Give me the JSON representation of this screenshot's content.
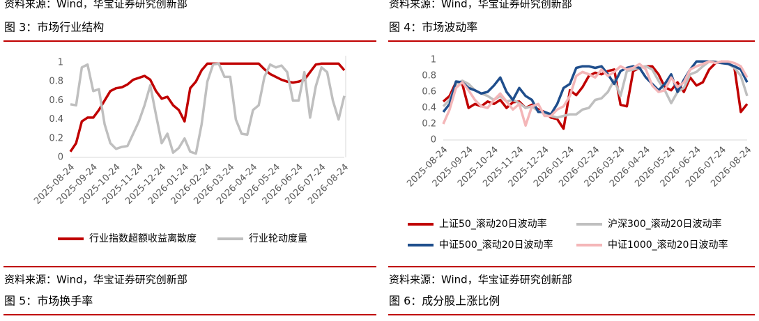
{
  "left": {
    "top_source": "资料来源：Wind，华宝证券研究创新部",
    "caption": "图 3：市场行业结构",
    "source": "资料来源：Wind，华宝证券研究创新部",
    "next_caption": "图 5：市场换手率"
  },
  "right": {
    "top_source": "资料来源：Wind，华宝证券研究创新部",
    "caption": "图 4：市场波动率",
    "source": "资料来源：Wind，华宝证券研究创新部",
    "next_caption": "图 6：成分股上涨比例"
  },
  "chart_data": [
    {
      "type": "line",
      "categories": [
        "2025-08-24",
        null,
        null,
        null,
        "2025-09-24",
        null,
        null,
        null,
        "2025-10-24",
        null,
        null,
        null,
        "2025-11-24",
        null,
        null,
        null,
        "2025-12-24",
        null,
        null,
        null,
        "2026-01-24",
        null,
        null,
        null,
        "2026-02-24",
        null,
        null,
        null,
        "2026-03-24",
        null,
        null,
        null,
        "2026-04-24",
        null,
        null,
        null,
        "2026-05-24",
        null,
        null,
        null,
        "2026-06-24",
        null,
        null,
        null,
        "2026-07-24",
        null,
        null,
        null,
        "2026-08-24"
      ],
      "ylim": [
        0,
        1
      ],
      "yticks": [
        0,
        0.2,
        0.4,
        0.6,
        0.8,
        1
      ],
      "grid": false,
      "series": [
        {
          "name": "行业指数超额收益离散度",
          "color": "#c00000",
          "values": [
            0.06,
            0.15,
            0.38,
            0.42,
            0.42,
            0.5,
            0.6,
            0.7,
            0.73,
            0.74,
            0.77,
            0.82,
            0.84,
            0.86,
            0.82,
            0.7,
            0.62,
            0.64,
            0.55,
            0.5,
            0.38,
            0.73,
            0.8,
            0.92,
            0.99,
            0.99,
            0.99,
            0.99,
            0.99,
            0.99,
            0.99,
            0.99,
            0.99,
            0.99,
            0.93,
            0.88,
            0.85,
            0.82,
            0.8,
            0.79,
            0.8,
            0.82,
            0.9,
            0.98,
            0.99,
            0.99,
            0.99,
            0.99,
            0.92
          ]
        },
        {
          "name": "行业轮动度量",
          "color": "#bfbfbf",
          "values": [
            0.56,
            0.55,
            0.95,
            0.98,
            0.7,
            0.72,
            0.35,
            0.15,
            0.09,
            0.11,
            0.12,
            0.25,
            0.38,
            0.55,
            0.76,
            0.45,
            0.15,
            0.25,
            0.05,
            0.1,
            0.2,
            0.06,
            0.04,
            0.35,
            0.8,
            0.98,
            0.99,
            0.85,
            0.85,
            0.4,
            0.25,
            0.24,
            0.5,
            0.55,
            0.85,
            0.98,
            0.95,
            0.97,
            0.9,
            0.6,
            0.6,
            0.9,
            0.42,
            0.75,
            0.95,
            0.9,
            0.6,
            0.4,
            0.65
          ]
        }
      ]
    },
    {
      "type": "line",
      "categories": [
        "2025-08-24",
        null,
        null,
        null,
        "2025-09-24",
        null,
        null,
        null,
        "2025-10-24",
        null,
        null,
        null,
        "2025-11-24",
        null,
        null,
        null,
        "2025-12-24",
        null,
        null,
        null,
        "2026-01-24",
        null,
        null,
        null,
        "2026-02-24",
        null,
        null,
        null,
        "2026-03-24",
        null,
        null,
        null,
        "2026-04-24",
        null,
        null,
        null,
        "2026-05-24",
        null,
        null,
        null,
        "2026-06-24",
        null,
        null,
        null,
        "2026-07-24",
        null,
        null,
        null,
        "2026-08-24"
      ],
      "ylim": [
        0,
        1
      ],
      "yticks": [
        0,
        0.2,
        0.4,
        0.6,
        0.8,
        1
      ],
      "grid": false,
      "series": [
        {
          "name": "上证50_滚动20日波动率",
          "color": "#c00000",
          "values": [
            0.48,
            0.55,
            0.72,
            0.7,
            0.4,
            0.45,
            0.42,
            0.48,
            0.45,
            0.5,
            0.4,
            0.47,
            0.48,
            0.4,
            0.44,
            0.38,
            0.35,
            0.28,
            0.26,
            0.14,
            0.62,
            0.56,
            0.66,
            0.8,
            0.84,
            0.82,
            0.86,
            0.88,
            0.44,
            0.42,
            0.86,
            0.9,
            0.92,
            0.92,
            0.82,
            0.66,
            0.62,
            0.72,
            0.6,
            0.78,
            0.68,
            0.72,
            0.88,
            0.96,
            0.98,
            0.96,
            0.9,
            0.35,
            0.45
          ]
        },
        {
          "name": "沪深300_滚动20日波动率",
          "color": "#bfbfbf",
          "values": [
            0.42,
            0.5,
            0.7,
            0.74,
            0.7,
            0.62,
            0.58,
            0.55,
            0.5,
            0.55,
            0.48,
            0.5,
            0.46,
            0.4,
            0.42,
            0.36,
            0.34,
            0.3,
            0.28,
            0.3,
            0.32,
            0.32,
            0.38,
            0.4,
            0.5,
            0.52,
            0.6,
            0.75,
            0.55,
            0.86,
            0.88,
            0.9,
            0.92,
            0.88,
            0.74,
            0.62,
            0.46,
            0.6,
            0.65,
            0.82,
            0.85,
            0.92,
            0.98,
            0.98,
            0.96,
            0.95,
            0.9,
            0.8,
            0.55
          ]
        },
        {
          "name": "中证500_滚动20日波动率",
          "color": "#1f4e8c",
          "values": [
            0.35,
            0.45,
            0.73,
            0.72,
            0.65,
            0.62,
            0.58,
            0.6,
            0.68,
            0.78,
            0.6,
            0.5,
            0.65,
            0.55,
            0.5,
            0.35,
            0.35,
            0.32,
            0.45,
            0.65,
            0.7,
            0.9,
            0.92,
            0.92,
            0.9,
            0.92,
            0.82,
            0.7,
            0.86,
            0.9,
            0.92,
            0.9,
            0.78,
            0.7,
            0.62,
            0.7,
            0.82,
            0.6,
            0.75,
            0.88,
            0.98,
            0.98,
            0.98,
            0.97,
            0.96,
            0.95,
            0.92,
            0.88,
            0.72
          ]
        },
        {
          "name": "中证1000_滚动20日波动率",
          "color": "#f4b6b8",
          "values": [
            0.2,
            0.38,
            0.65,
            0.72,
            0.62,
            0.5,
            0.42,
            0.4,
            0.5,
            0.58,
            0.48,
            0.38,
            0.45,
            0.18,
            0.42,
            0.45,
            0.3,
            0.3,
            0.38,
            0.42,
            0.55,
            0.8,
            0.85,
            0.82,
            0.78,
            0.88,
            0.8,
            0.85,
            0.92,
            0.88,
            0.9,
            0.95,
            0.88,
            0.68,
            0.6,
            0.62,
            0.78,
            0.66,
            0.72,
            0.88,
            0.92,
            0.95,
            0.98,
            0.96,
            0.98,
            0.98,
            0.96,
            0.92,
            0.78
          ]
        }
      ]
    }
  ]
}
